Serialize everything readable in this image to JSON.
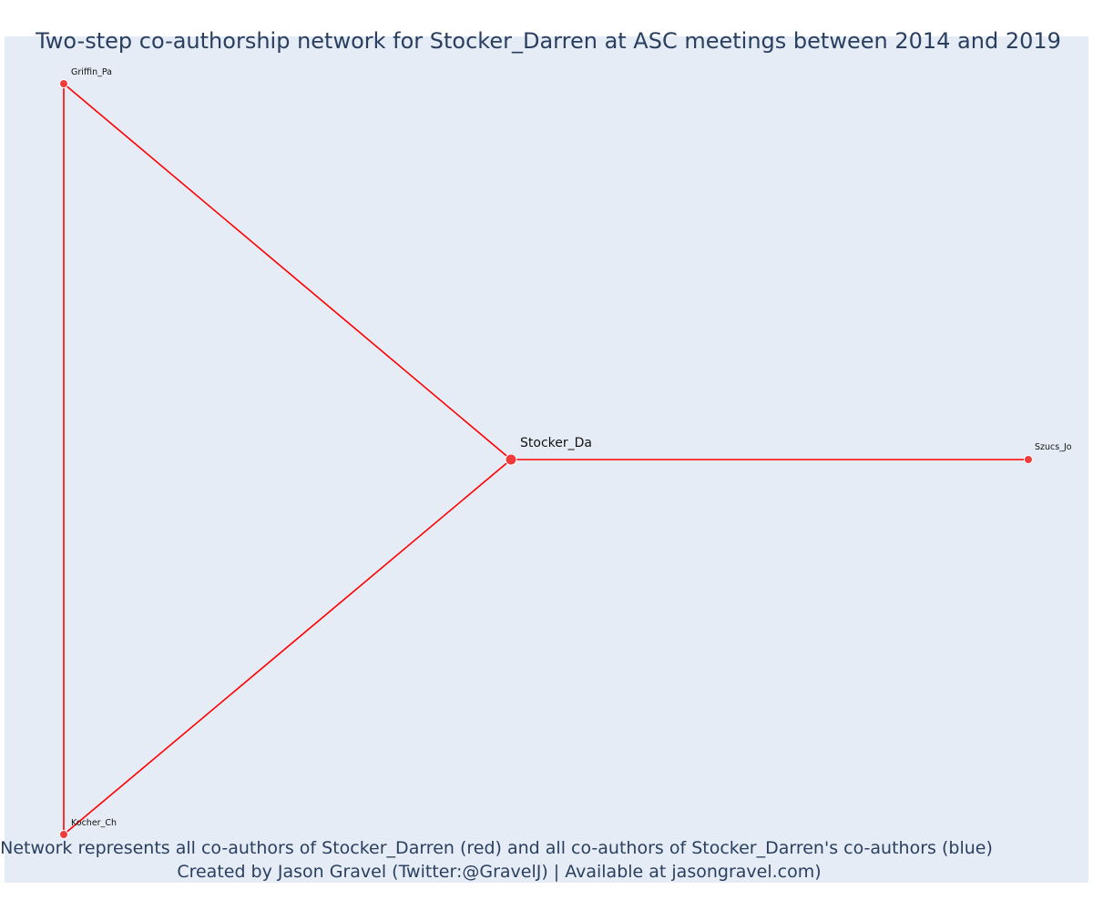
{
  "title": "Two-step co-authorship network for Stocker_Darren at ASC meetings between 2014 and 2019",
  "caption": {
    "line1": "Network represents all co-authors of Stocker_Darren (red) and all co-authors of Stocker_Darren's co-authors (blue)",
    "line2": "Created by Jason Gravel (Twitter:@GravelJ) | Available at jasongravel.com)"
  },
  "colors": {
    "background": "#e5ecf6",
    "edge": "#ff0000",
    "node_red": "#ef3b3b",
    "text": "#2a3f5f"
  },
  "network": {
    "nodes": [
      {
        "id": "Stocker_Da",
        "label": "Stocker_Da",
        "group": "red",
        "focal": true
      },
      {
        "id": "Griffin_Pa",
        "label": "Griffin_Pa",
        "group": "red",
        "focal": false
      },
      {
        "id": "Kocher_Ch",
        "label": "Kocher_Ch",
        "group": "red",
        "focal": false
      },
      {
        "id": "Szucs_Jo",
        "label": "Szucs_Jo",
        "group": "red",
        "focal": false
      }
    ],
    "edges": [
      {
        "source": "Griffin_Pa",
        "target": "Stocker_Da"
      },
      {
        "source": "Kocher_Ch",
        "target": "Stocker_Da"
      },
      {
        "source": "Griffin_Pa",
        "target": "Kocher_Ch"
      },
      {
        "source": "Stocker_Da",
        "target": "Szucs_Jo"
      }
    ]
  }
}
